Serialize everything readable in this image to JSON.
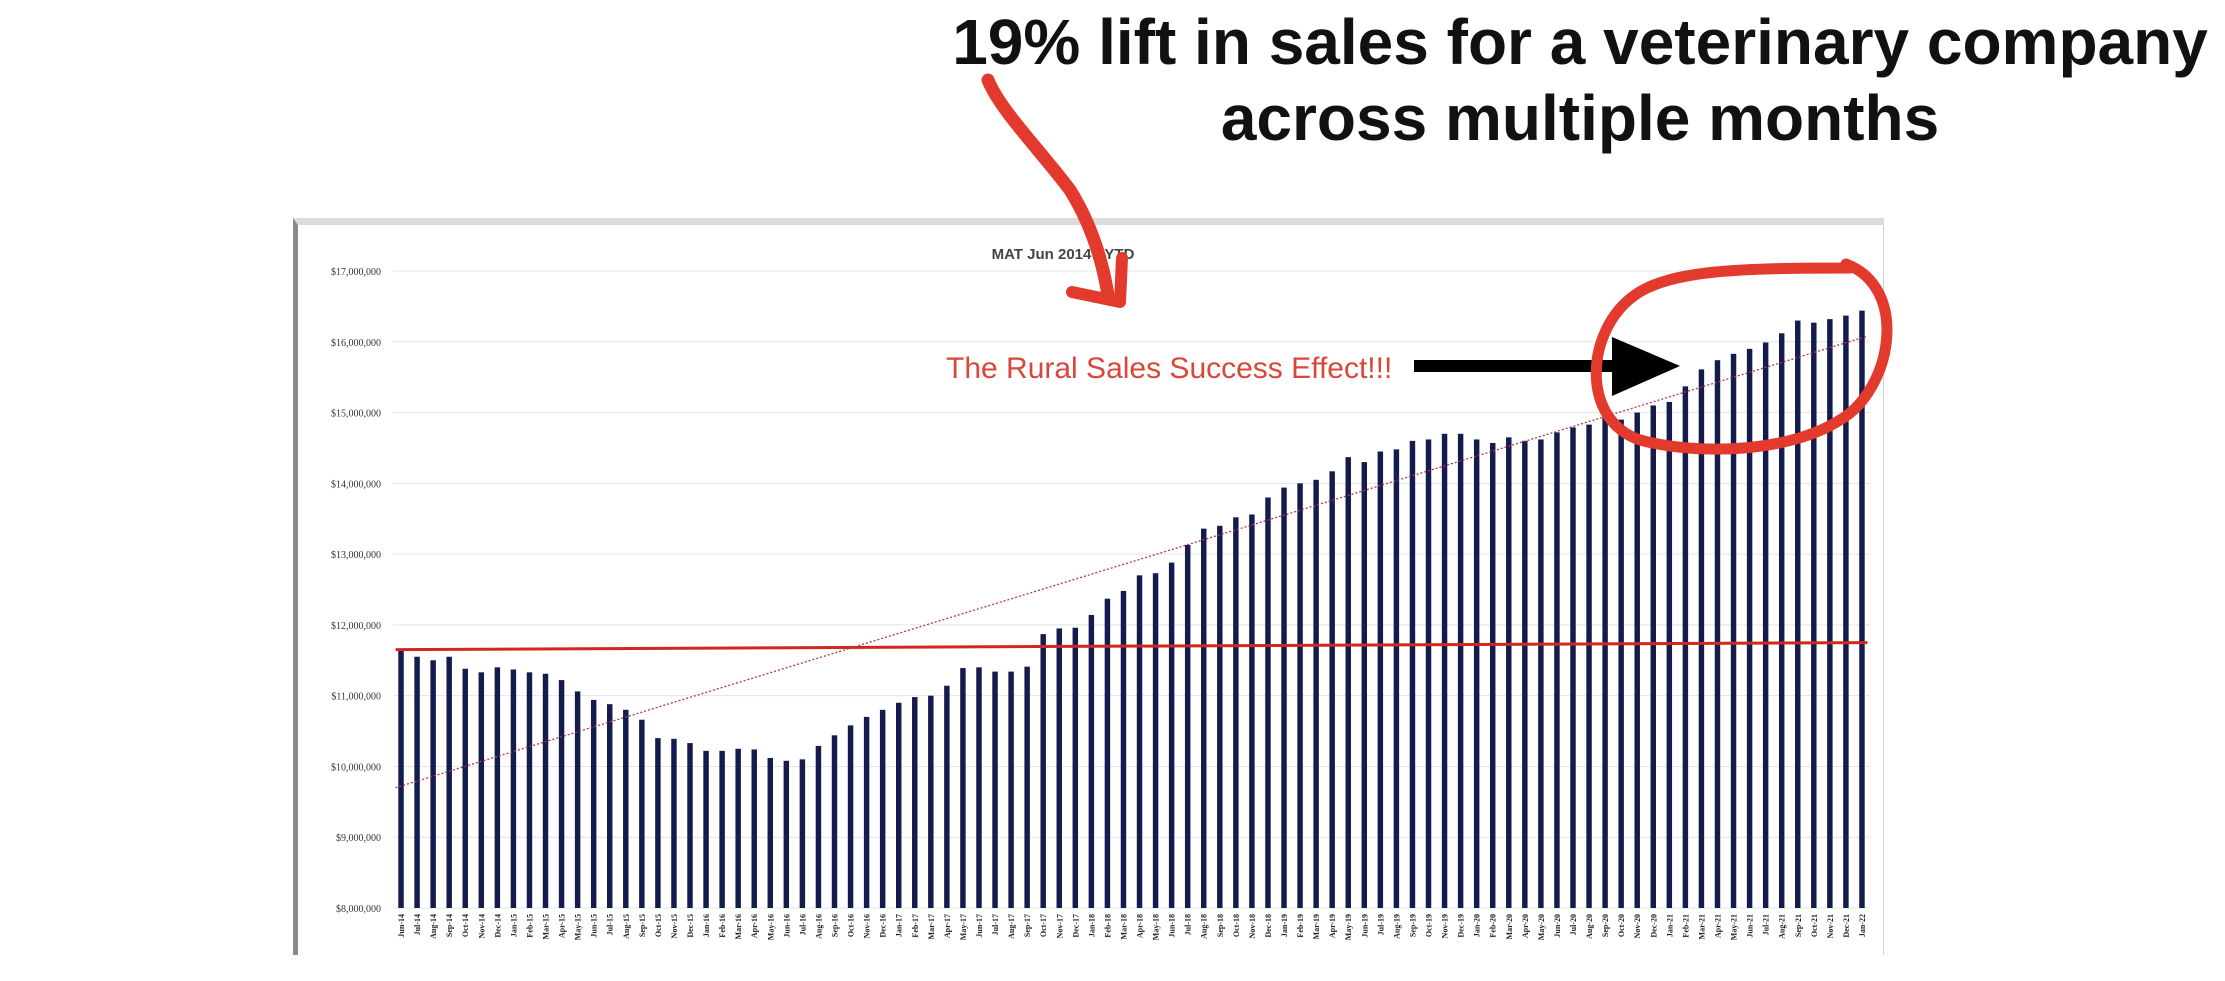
{
  "headline": {
    "line1": "19% lift in sales for a veterinary company",
    "line2": "across multiple months"
  },
  "annotation": {
    "text": "The Rural Sales Success Effect!!!"
  },
  "colors": {
    "bar": "#141b4d",
    "baseline": "#d0281e",
    "trendline": "#b23a48",
    "markup": "#e23a2c",
    "arrow": "#000000"
  },
  "chart_data": {
    "type": "bar",
    "title": "MAT Jun  2014 - YTD",
    "xlabel": "",
    "ylabel": "",
    "ylim": [
      8000000,
      17000000
    ],
    "yticks": [
      8000000,
      9000000,
      10000000,
      11000000,
      12000000,
      13000000,
      14000000,
      15000000,
      16000000,
      17000000
    ],
    "ytick_labels": [
      "$8,000,000",
      "$9,000,000",
      "$10,000,000",
      "$11,000,000",
      "$12,000,000",
      "$13,000,000",
      "$14,000,000",
      "$15,000,000",
      "$16,000,000",
      "$17,000,000"
    ],
    "grid": true,
    "categories": [
      "Jun-14",
      "Jul-14",
      "Aug-14",
      "Sep-14",
      "Oct-14",
      "Nov-14",
      "Dec-14",
      "Jan-15",
      "Feb-15",
      "Mar-15",
      "Apr-15",
      "May-15",
      "Jun-15",
      "Jul-15",
      "Aug-15",
      "Sep-15",
      "Oct-15",
      "Nov-15",
      "Dec-15",
      "Jan-16",
      "Feb-16",
      "Mar-16",
      "Apr-16",
      "May-16",
      "Jun-16",
      "Jul-16",
      "Aug-16",
      "Sep-16",
      "Oct-16",
      "Nov-16",
      "Dec-16",
      "Jan-17",
      "Feb-17",
      "Mar-17",
      "Apr-17",
      "May-17",
      "Jun-17",
      "Jul-17",
      "Aug-17",
      "Sep-17",
      "Oct-17",
      "Nov-17",
      "Dec-17",
      "Jan-18",
      "Feb-18",
      "Mar-18",
      "Apr-18",
      "May-18",
      "Jun-18",
      "Jul-18",
      "Aug-18",
      "Sep-18",
      "Oct-18",
      "Nov-18",
      "Dec-18",
      "Jan-19",
      "Feb-19",
      "Mar-19",
      "Apr-19",
      "May-19",
      "Jun-19",
      "Jul-19",
      "Aug-19",
      "Sep-19",
      "Oct-19",
      "Nov-19",
      "Dec-19",
      "Jan-20",
      "Feb-20",
      "Mar-20",
      "Apr-20",
      "May-20",
      "Jun-20",
      "Jul-20",
      "Aug-20",
      "Sep-20",
      "Oct-20",
      "Nov-20",
      "Dec-20",
      "Jan-21",
      "Feb-21",
      "Mar-21",
      "Apr-21",
      "May-21",
      "Jun-21",
      "Jul-21",
      "Aug-21",
      "Sep-21",
      "Oct-21",
      "Nov-21",
      "Dec-21",
      "Jan-22"
    ],
    "series": [
      {
        "values": [
          11650000,
          11550000,
          11500000,
          11550000,
          11380000,
          11330000,
          11400000,
          11370000,
          11330000,
          11310000,
          11220000,
          11060000,
          10940000,
          10880000,
          10800000,
          10660000,
          10400000,
          10390000,
          10330000,
          10220000,
          10220000,
          10250000,
          10240000,
          10120000,
          10080000,
          10100000,
          10290000,
          10440000,
          10580000,
          10700000,
          10800000,
          10900000,
          10980000,
          11000000,
          11140000,
          11390000,
          11400000,
          11340000,
          11340000,
          11410000,
          11870000,
          11950000,
          11960000,
          12140000,
          12370000,
          12480000,
          12700000,
          12730000,
          12880000,
          13130000,
          13360000,
          13400000,
          13520000,
          13560000,
          13800000,
          13940000,
          14000000,
          14050000,
          14170000,
          14370000,
          14300000,
          14450000,
          14480000,
          14600000,
          14620000,
          14700000,
          14700000,
          14620000,
          14570000,
          14650000,
          14600000,
          14620000,
          14720000,
          14790000,
          14830000,
          14930000,
          14900000,
          15000000,
          15100000,
          15150000,
          15370000,
          15610000,
          15740000,
          15830000,
          15900000,
          15990000,
          16120000,
          16300000,
          16270000,
          16320000,
          16370000,
          16440000
        ]
      }
    ],
    "reference_lines": {
      "baseline": {
        "start": 11650000,
        "end": 11750000
      },
      "trend": {
        "start": 9700000,
        "end": 16080000
      }
    }
  }
}
